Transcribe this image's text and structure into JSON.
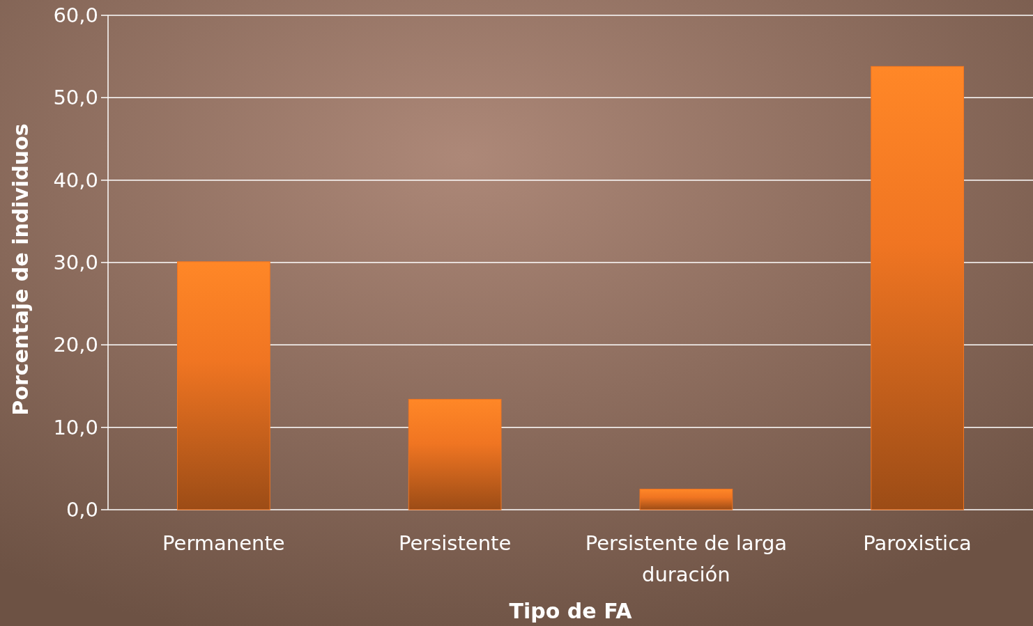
{
  "chart_data": {
    "type": "bar",
    "xlabel": "Tipo de FA",
    "ylabel": "Porcentaje de individuos",
    "categories": [
      "Permanente",
      "Persistente",
      "Persistente de larga duración",
      "Paroxistica"
    ],
    "values": [
      30.1,
      13.4,
      2.5,
      53.8
    ],
    "color": "#f07522",
    "ylim": [
      0,
      60
    ],
    "yticks": [
      {
        "value": 0,
        "label": "0,0"
      },
      {
        "value": 10,
        "label": "10,0"
      },
      {
        "value": 20,
        "label": "20,0"
      },
      {
        "value": 30,
        "label": "30,0"
      },
      {
        "value": 40,
        "label": "40,0"
      },
      {
        "value": 50,
        "label": "50,0"
      },
      {
        "value": 60,
        "label": "60,0"
      }
    ],
    "grid": "y"
  }
}
